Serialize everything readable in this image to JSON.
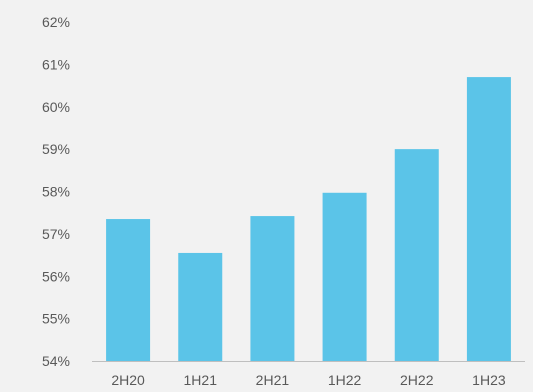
{
  "chart_data": {
    "type": "bar",
    "categories": [
      "2H20",
      "1H21",
      "2H21",
      "1H22",
      "2H22",
      "1H23"
    ],
    "values": [
      57.35,
      56.55,
      57.42,
      57.97,
      59.0,
      60.7
    ],
    "ylim": [
      54,
      62
    ],
    "yticks": [
      54,
      55,
      56,
      57,
      58,
      59,
      60,
      61,
      62
    ],
    "ytick_labels": [
      "54%",
      "55%",
      "56%",
      "57%",
      "58%",
      "59%",
      "60%",
      "61%",
      "62%"
    ],
    "title": "",
    "xlabel": "",
    "ylabel": "",
    "grid": false,
    "bar_color": "#5bc4e8",
    "axis_color": "#bfbfbf",
    "background": "#f2f2f2"
  }
}
